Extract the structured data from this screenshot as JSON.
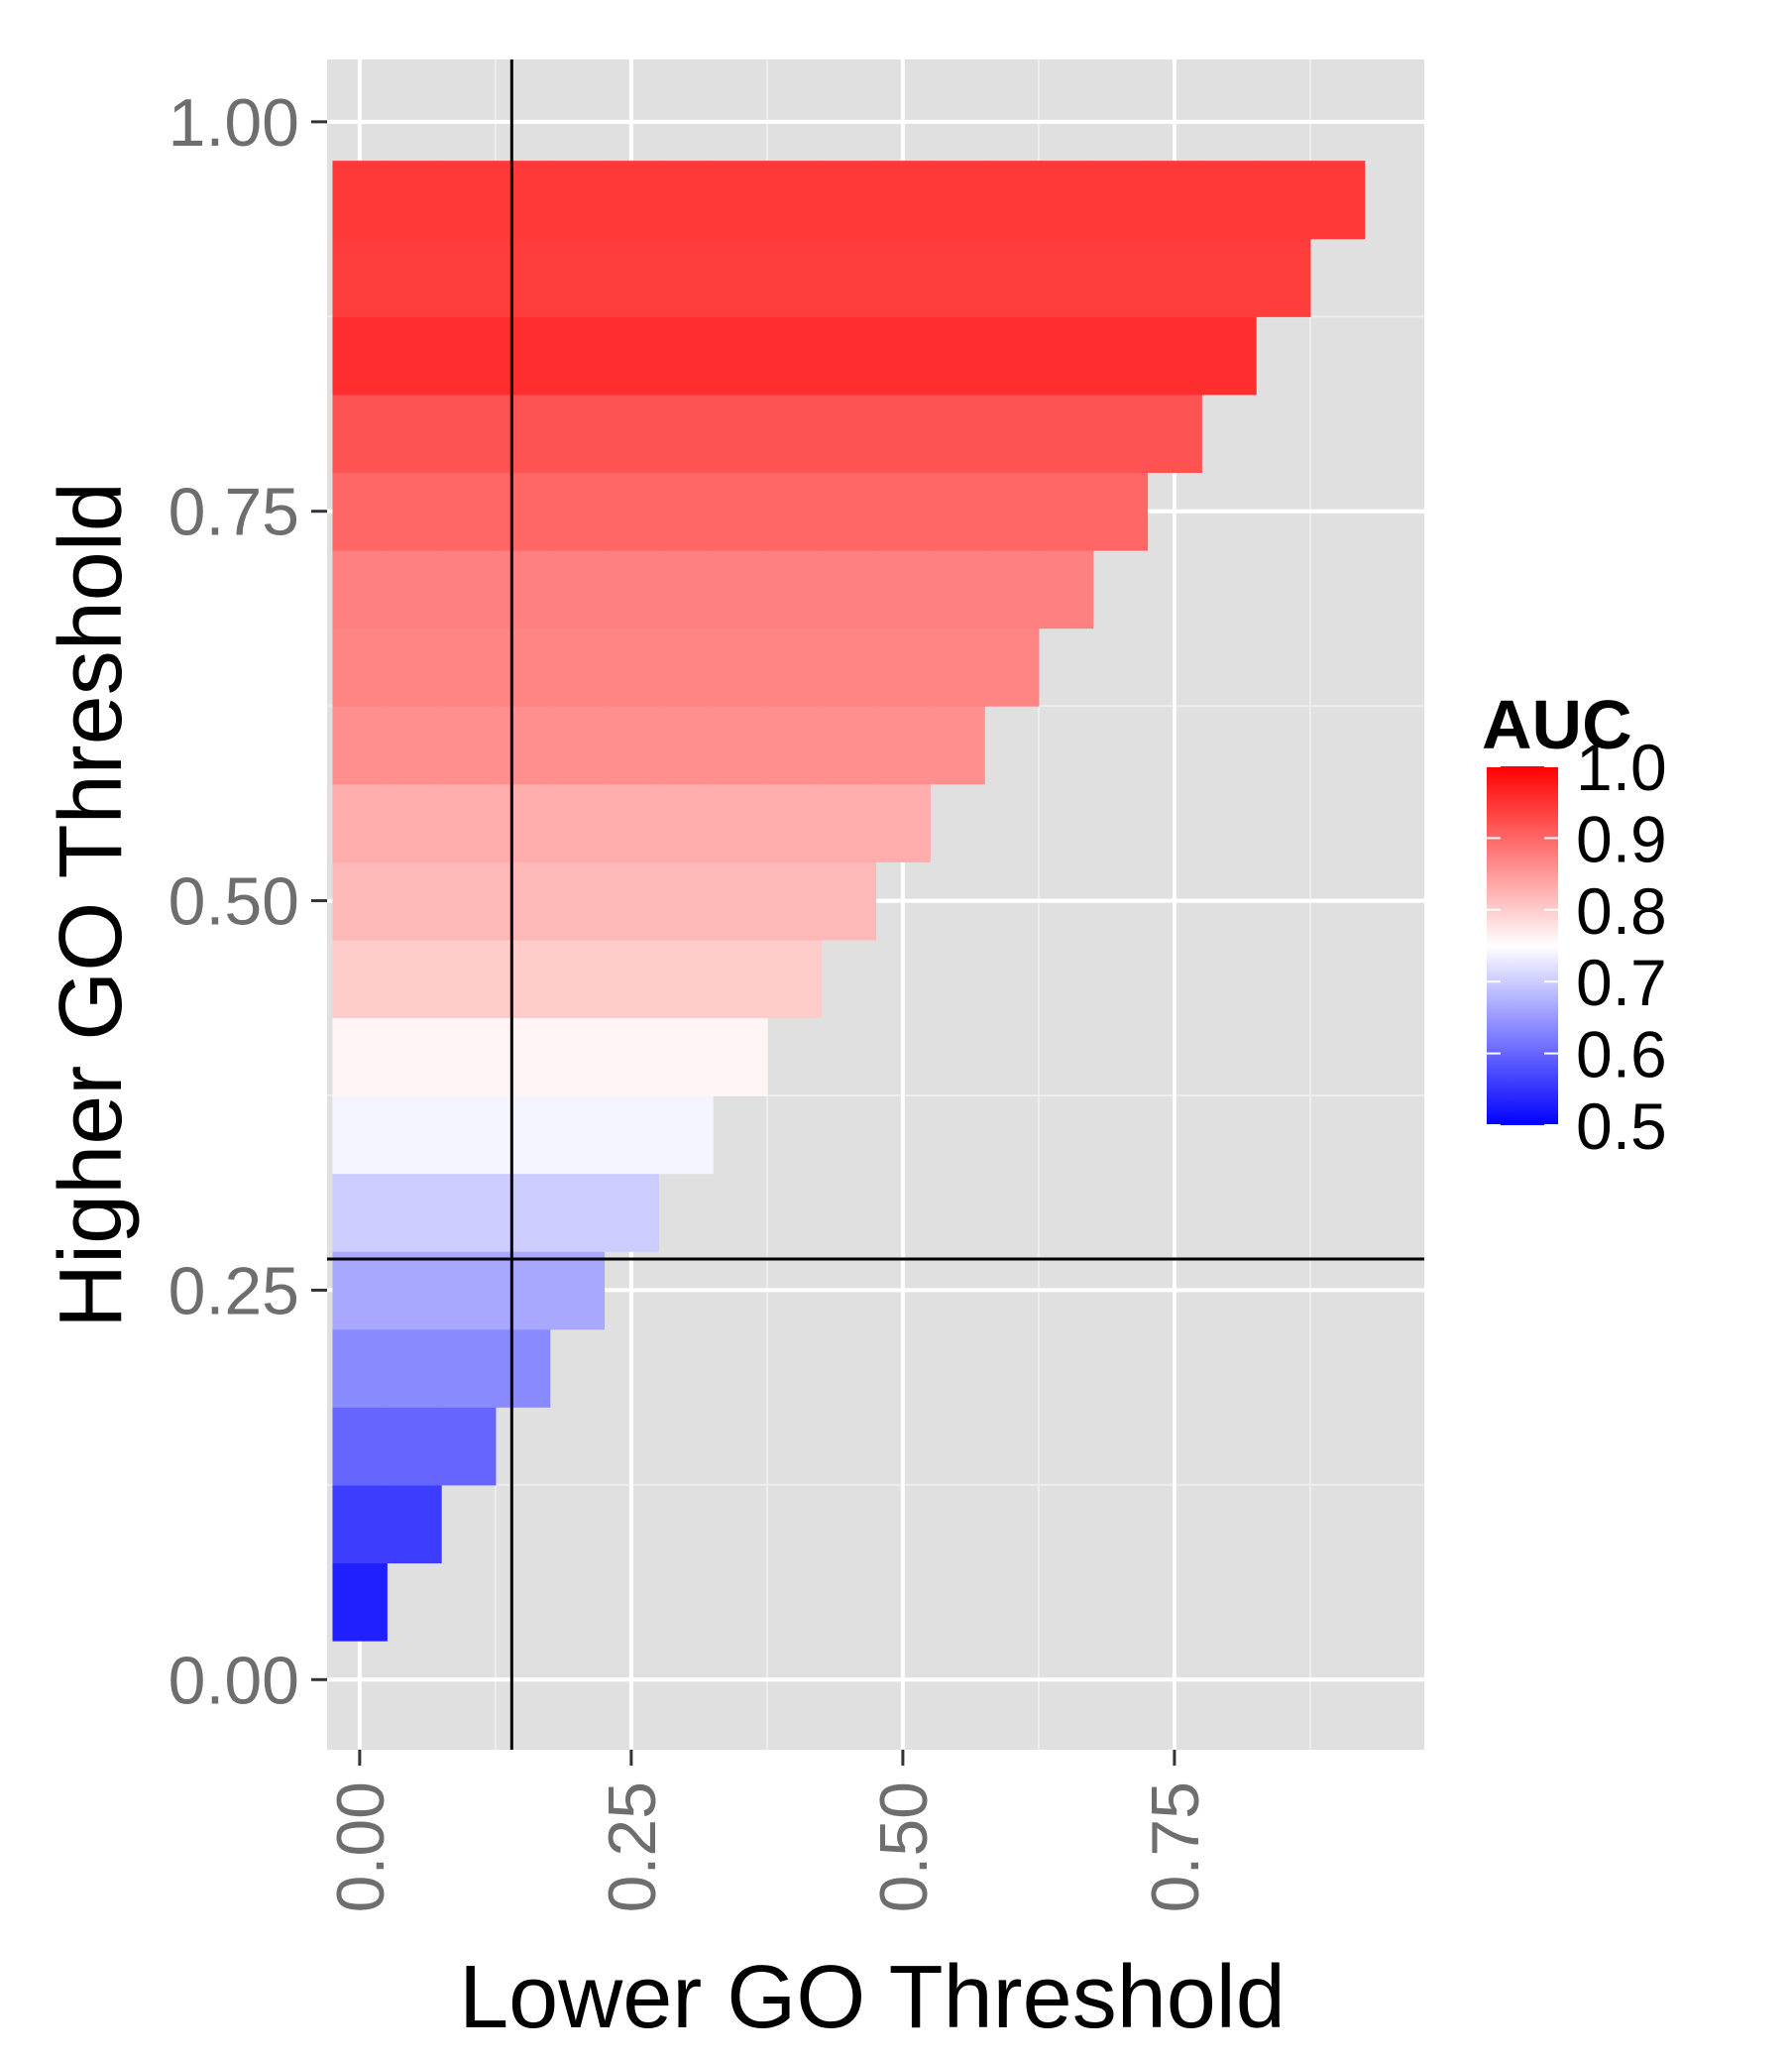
{
  "chart_data": {
    "type": "heatmap",
    "title": "",
    "xlabel": "Lower GO Threshold",
    "ylabel": "Higher GO Threshold",
    "xlim": [
      -0.03,
      0.98
    ],
    "ylim": [
      -0.045,
      1.04
    ],
    "x_ticks": [
      {
        "value": 0.0,
        "label": "0.00"
      },
      {
        "value": 0.25,
        "label": "0.25"
      },
      {
        "value": 0.5,
        "label": "0.50"
      },
      {
        "value": 0.75,
        "label": "0.75"
      }
    ],
    "y_ticks": [
      {
        "value": 0.0,
        "label": "0.00"
      },
      {
        "value": 0.25,
        "label": "0.25"
      },
      {
        "value": 0.5,
        "label": "0.50"
      },
      {
        "value": 0.75,
        "label": "0.75"
      },
      {
        "value": 1.0,
        "label": "1.00"
      }
    ],
    "grid": true,
    "tile_width": 0.05,
    "tile_height": 0.05,
    "reference_lines": {
      "x": 0.14,
      "y": 0.27
    },
    "rows": [
      {
        "y": 0.05,
        "x_max": 0.025,
        "auc": 0.53
      },
      {
        "y": 0.1,
        "x_max": 0.075,
        "auc": 0.56
      },
      {
        "y": 0.15,
        "x_max": 0.125,
        "auc": 0.6
      },
      {
        "y": 0.2,
        "x_max": 0.175,
        "auc": 0.635
      },
      {
        "y": 0.25,
        "x_max": 0.225,
        "auc": 0.665
      },
      {
        "y": 0.3,
        "x_max": 0.275,
        "auc": 0.7
      },
      {
        "y": 0.35,
        "x_max": 0.325,
        "auc": 0.74
      },
      {
        "y": 0.4,
        "x_max": 0.375,
        "auc": 0.76
      },
      {
        "y": 0.45,
        "x_max": 0.425,
        "auc": 0.8
      },
      {
        "y": 0.5,
        "x_max": 0.475,
        "auc": 0.82
      },
      {
        "y": 0.55,
        "x_max": 0.525,
        "auc": 0.83
      },
      {
        "y": 0.6,
        "x_max": 0.575,
        "auc": 0.86
      },
      {
        "y": 0.65,
        "x_max": 0.625,
        "auc": 0.87
      },
      {
        "y": 0.7,
        "x_max": 0.675,
        "auc": 0.875
      },
      {
        "y": 0.75,
        "x_max": 0.725,
        "auc": 0.9
      },
      {
        "y": 0.8,
        "x_max": 0.775,
        "auc": 0.92
      },
      {
        "y": 0.85,
        "x_max": 0.825,
        "auc": 0.955
      },
      {
        "y": 0.9,
        "x_max": 0.875,
        "auc": 0.94
      },
      {
        "y": 0.95,
        "x_max": 0.925,
        "auc": 0.945
      }
    ],
    "legend": {
      "title": "AUC",
      "placement": "right",
      "range": [
        0.5,
        1.0
      ],
      "ticks": [
        {
          "value": 1.0,
          "label": "1.0"
        },
        {
          "value": 0.9,
          "label": "0.9"
        },
        {
          "value": 0.8,
          "label": "0.8"
        },
        {
          "value": 0.7,
          "label": "0.7"
        },
        {
          "value": 0.6,
          "label": "0.6"
        },
        {
          "value": 0.5,
          "label": "0.5"
        }
      ],
      "colors": {
        "low": "#0000ff",
        "mid": "#ffffff",
        "high": "#ff0000",
        "midpoint": 0.75
      }
    },
    "panel_background": "#e0e0e0"
  }
}
